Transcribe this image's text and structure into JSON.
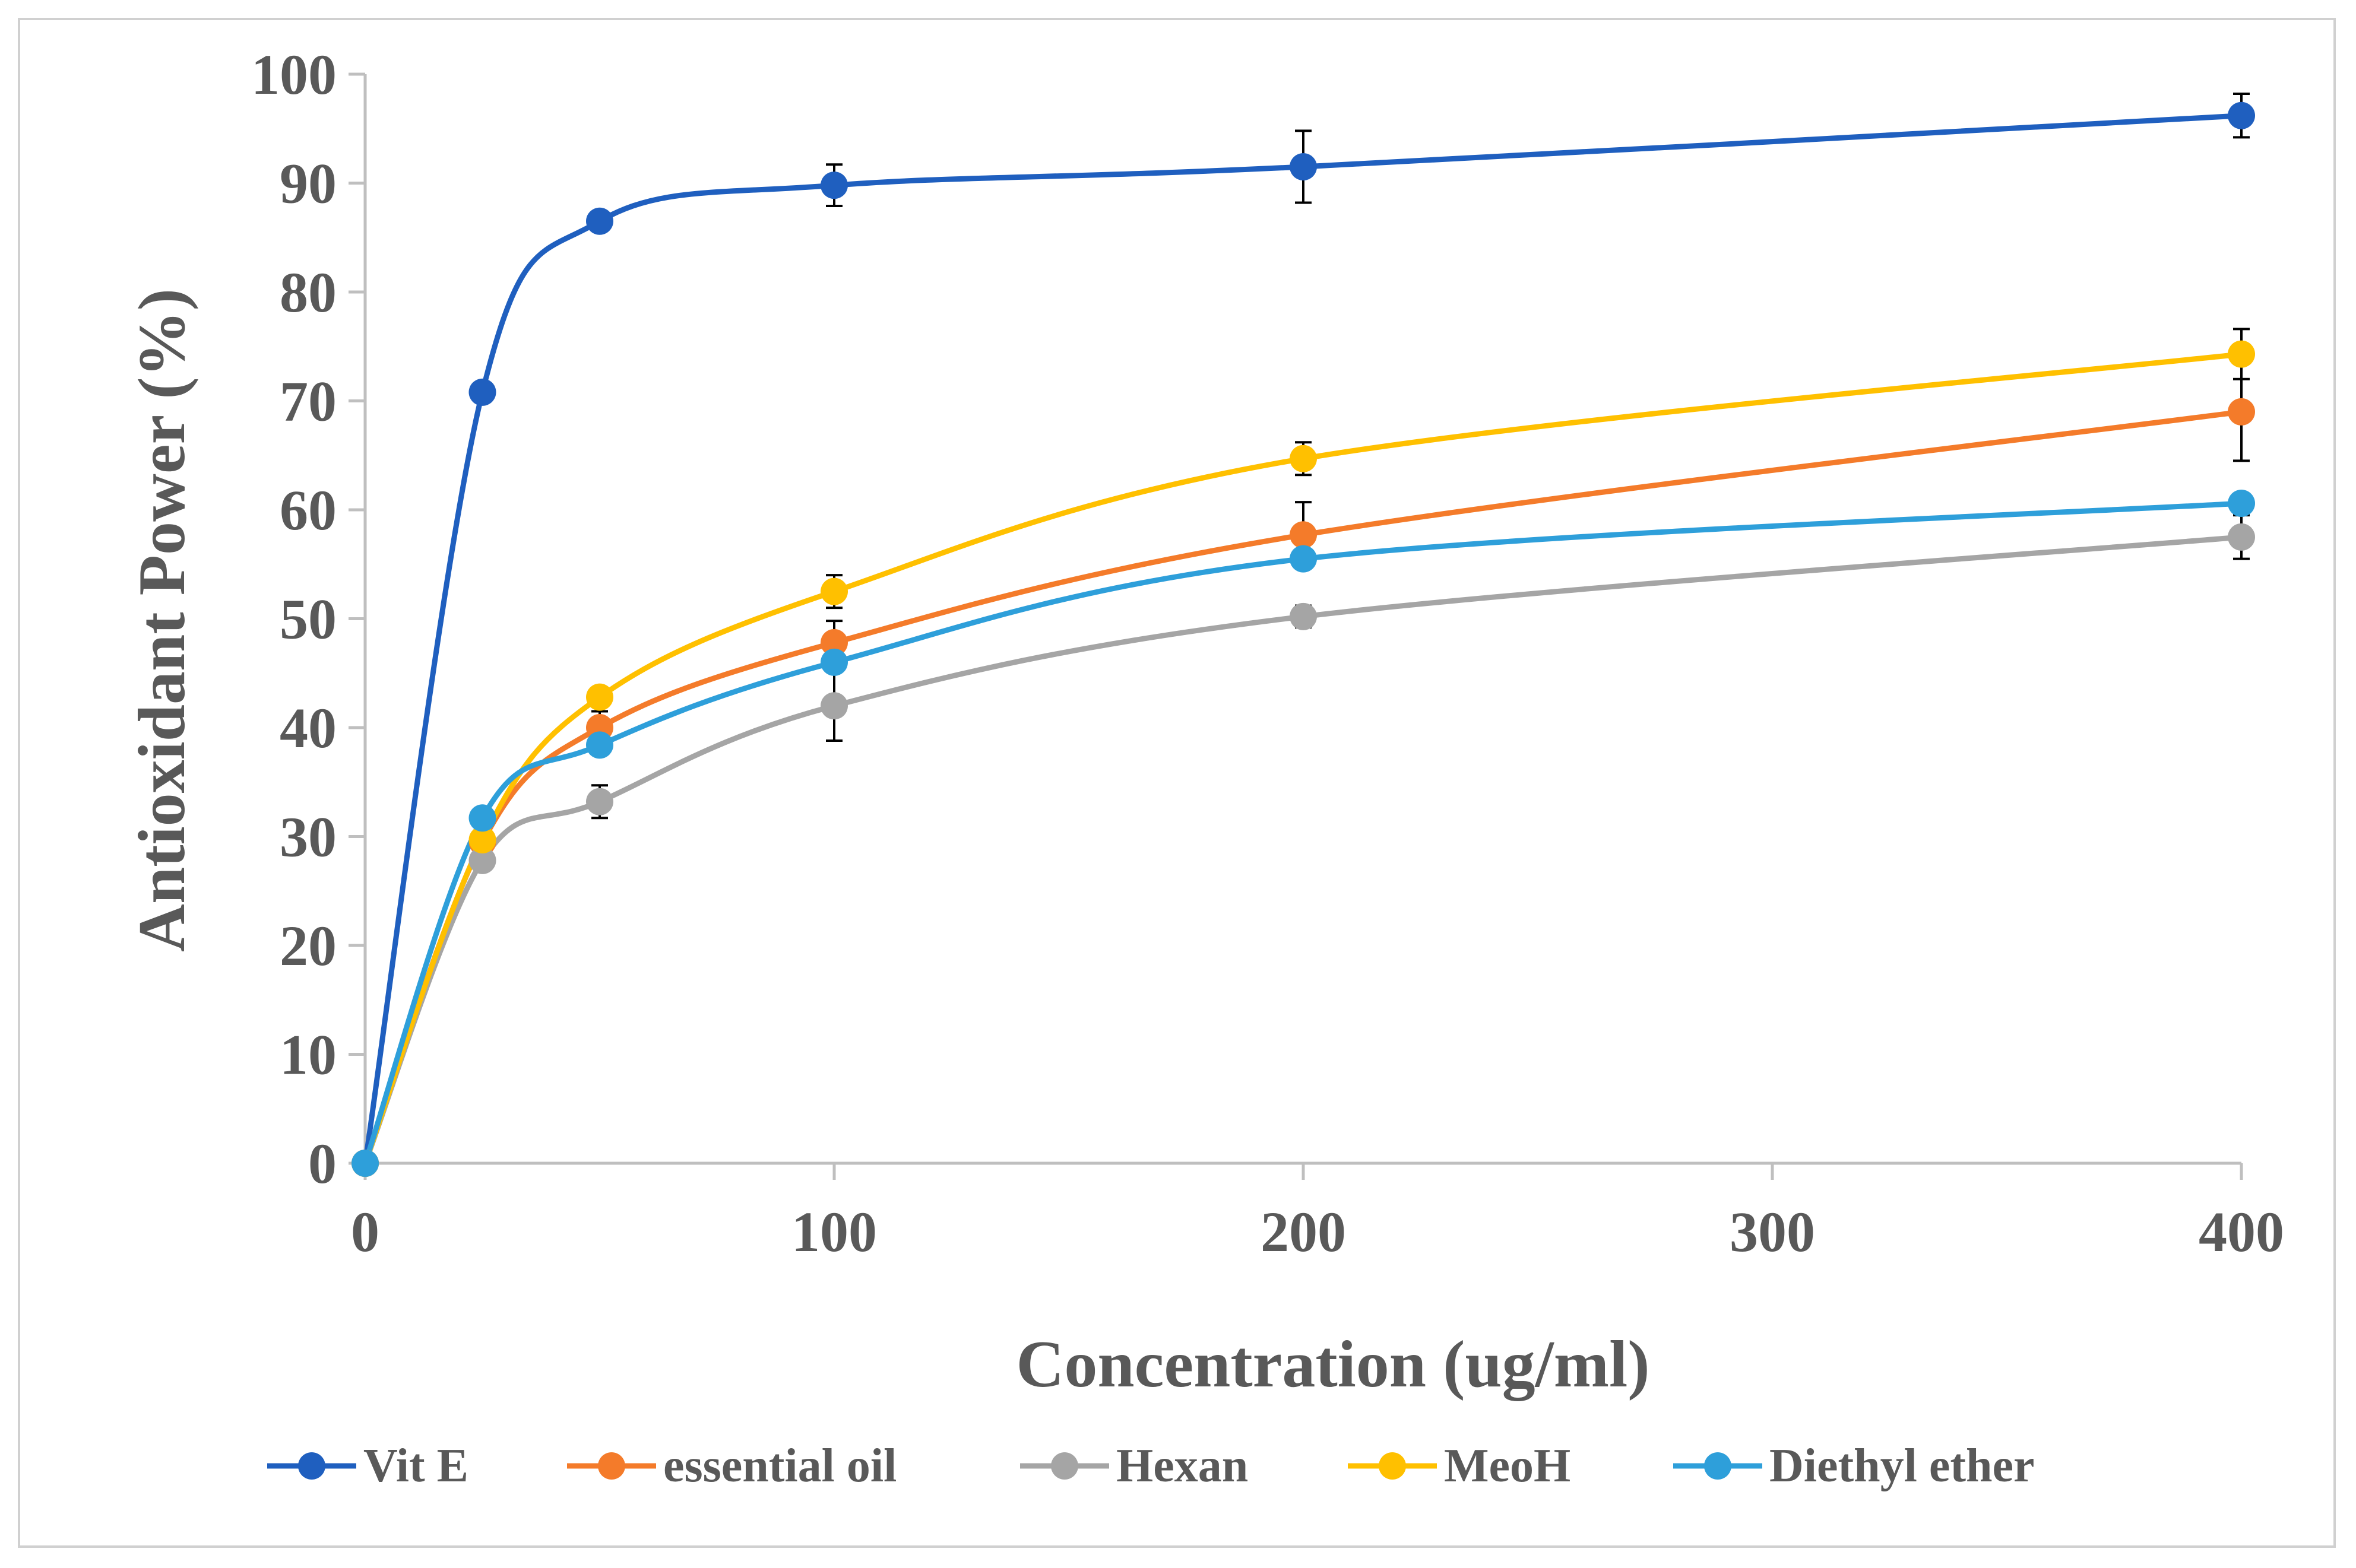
{
  "chart_data": {
    "type": "line",
    "title": "",
    "xlabel": "Concentration (ug/ml)",
    "ylabel": "Antioxidant Power (%)",
    "x": [
      0,
      25,
      50,
      100,
      200,
      400
    ],
    "x_ticks": [
      0,
      100,
      200,
      300,
      400
    ],
    "x_tick_labels": [
      "0",
      "100",
      "200",
      "300",
      "400"
    ],
    "y_ticks": [
      0,
      10,
      20,
      30,
      40,
      50,
      60,
      70,
      80,
      90,
      100
    ],
    "y_tick_labels": [
      "0",
      "10",
      "20",
      "30",
      "40",
      "50",
      "60",
      "70",
      "80",
      "90",
      "100"
    ],
    "xlim": [
      0,
      400
    ],
    "ylim": [
      0,
      100
    ],
    "grid": false,
    "legend_position": "bottom",
    "series": [
      {
        "name": "Vit E",
        "color": "#1f5fbf",
        "values": [
          0,
          70.8,
          86.5,
          89.8,
          91.5,
          96.2
        ],
        "errors": [
          0,
          0,
          0,
          1.9,
          3.3,
          2.0
        ]
      },
      {
        "name": "essential oil",
        "color": "#f47b2a",
        "values": [
          0,
          29.5,
          40.0,
          47.8,
          57.7,
          69.0
        ],
        "errors": [
          0,
          0,
          1.5,
          2.0,
          3.0,
          4.5
        ]
      },
      {
        "name": "Hexan",
        "color": "#a5a5a5",
        "values": [
          0,
          27.8,
          33.2,
          42.0,
          50.2,
          57.5
        ],
        "errors": [
          0,
          0,
          1.5,
          3.2,
          1.0,
          2.0
        ]
      },
      {
        "name": "MeoH",
        "color": "#ffc000",
        "values": [
          0,
          29.7,
          42.8,
          52.5,
          64.7,
          74.3
        ],
        "errors": [
          0,
          0,
          0,
          1.5,
          1.5,
          2.3
        ]
      },
      {
        "name": "Diethyl ether",
        "color": "#2e9fda",
        "values": [
          0,
          31.7,
          38.4,
          46.0,
          55.5,
          60.6
        ],
        "errors": [
          0,
          0,
          0,
          0,
          0,
          0
        ]
      }
    ]
  }
}
